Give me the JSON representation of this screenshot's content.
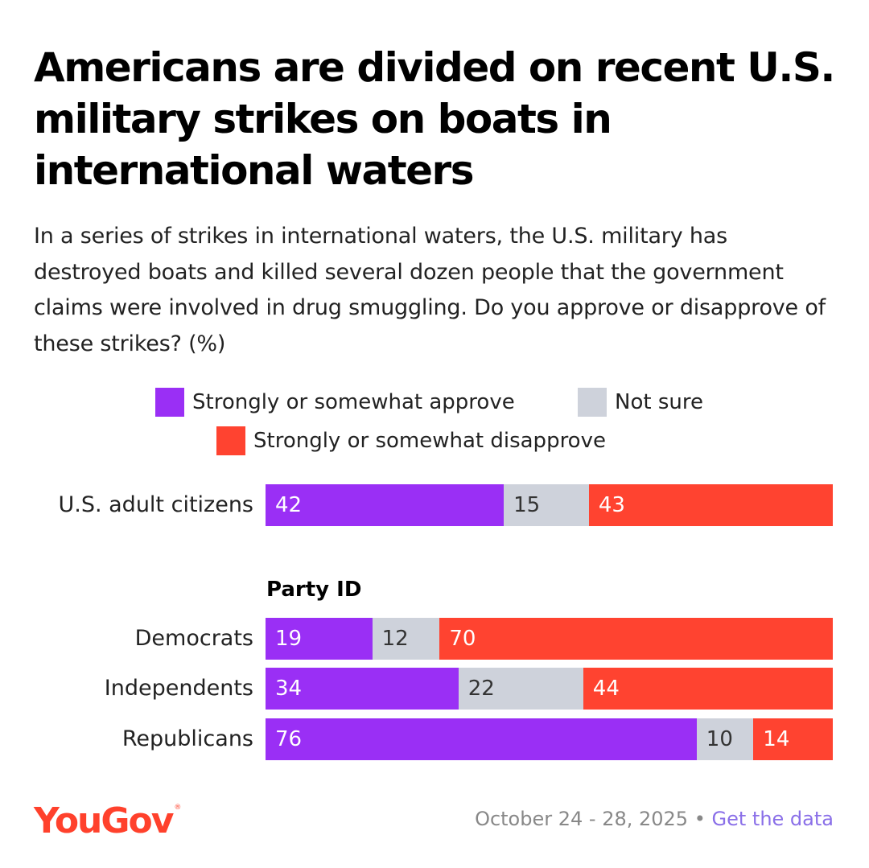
{
  "chart_data": {
    "type": "bar",
    "stacked": true,
    "orientation": "horizontal",
    "title": "Americans are divided on recent U.S. military strikes on boats in international waters",
    "subtitle": "In a series of strikes in international waters, the U.S. military has destroyed boats and killed several dozen people that the government claims were involved in drug smuggling. Do you approve or disapprove of these strikes? (%)",
    "legend": [
      {
        "label": "Strongly or somewhat approve",
        "color": "#9a2ff5"
      },
      {
        "label": "Not sure",
        "color": "#ced2db"
      },
      {
        "label": "Strongly or somewhat disapprove",
        "color": "#ff4330"
      }
    ],
    "legend_placement": "top-center",
    "group_label": "Party ID",
    "rows": [
      {
        "label": "U.S. adult citizens",
        "approve": 42,
        "not_sure": 15,
        "disapprove": 43
      },
      {
        "label": "Democrats",
        "approve": 19,
        "not_sure": 12,
        "disapprove": 70
      },
      {
        "label": "Independents",
        "approve": 34,
        "not_sure": 22,
        "disapprove": 44
      },
      {
        "label": "Republicans",
        "approve": 76,
        "not_sure": 10,
        "disapprove": 14
      }
    ]
  },
  "branding": {
    "logo": "YouGov",
    "logo_mark": "®",
    "logo_color": "#ff412c"
  },
  "footer": {
    "date": "October 24 - 28, 2025",
    "separator": "•",
    "link_text": "Get the data"
  }
}
